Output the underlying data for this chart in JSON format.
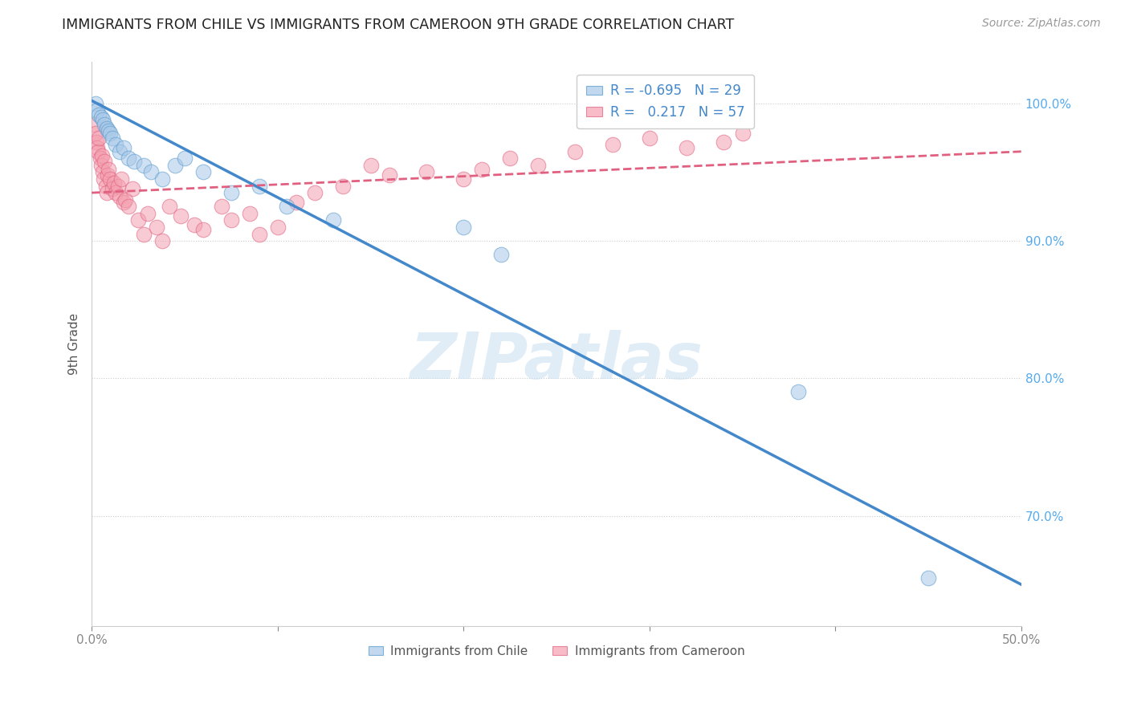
{
  "title": "IMMIGRANTS FROM CHILE VS IMMIGRANTS FROM CAMEROON 9TH GRADE CORRELATION CHART",
  "source": "Source: ZipAtlas.com",
  "ylabel": "9th Grade",
  "xlim": [
    0.0,
    50.0
  ],
  "ylim": [
    62.0,
    103.0
  ],
  "ytick_values": [
    100.0,
    90.0,
    80.0,
    70.0
  ],
  "xtick_values": [
    0.0,
    10.0,
    20.0,
    30.0,
    40.0,
    50.0
  ],
  "xtick_labels": [
    "0.0%",
    "",
    "",
    "",
    "",
    "50.0%"
  ],
  "watermark": "ZIPatlas",
  "chile_color": "#a8c8e8",
  "cameroon_color": "#f4a0b0",
  "chile_edge_color": "#5599cc",
  "cameroon_edge_color": "#e06080",
  "chile_line_color": "#4488cc",
  "cameroon_line_color": "#e06080",
  "right_tick_color": "#55aaee",
  "chile_scatter_x": [
    0.2,
    0.3,
    0.4,
    0.5,
    0.6,
    0.7,
    0.8,
    0.9,
    1.0,
    1.1,
    1.3,
    1.5,
    1.7,
    2.0,
    2.3,
    2.8,
    3.2,
    3.8,
    4.5,
    5.0,
    6.0,
    7.5,
    9.0,
    10.5,
    13.0,
    20.0,
    22.0,
    38.0,
    45.0
  ],
  "chile_scatter_y": [
    100.0,
    99.5,
    99.2,
    99.0,
    98.8,
    98.5,
    98.2,
    98.0,
    97.8,
    97.5,
    97.0,
    96.5,
    96.8,
    96.0,
    95.8,
    95.5,
    95.0,
    94.5,
    95.5,
    96.0,
    95.0,
    93.5,
    94.0,
    92.5,
    91.5,
    91.0,
    89.0,
    79.0,
    65.5
  ],
  "cameroon_scatter_x": [
    0.1,
    0.2,
    0.25,
    0.3,
    0.35,
    0.4,
    0.45,
    0.5,
    0.55,
    0.6,
    0.65,
    0.7,
    0.75,
    0.8,
    0.85,
    0.9,
    1.0,
    1.1,
    1.2,
    1.3,
    1.4,
    1.5,
    1.6,
    1.7,
    1.8,
    2.0,
    2.2,
    2.5,
    2.8,
    3.0,
    3.5,
    3.8,
    4.2,
    4.8,
    5.5,
    6.0,
    7.0,
    7.5,
    8.5,
    9.0,
    10.0,
    11.0,
    12.0,
    13.5,
    15.0,
    16.0,
    18.0,
    20.0,
    21.0,
    22.5,
    24.0,
    26.0,
    28.0,
    30.0,
    32.0,
    34.0,
    35.0
  ],
  "cameroon_scatter_y": [
    98.5,
    97.8,
    97.2,
    96.8,
    96.5,
    97.5,
    96.0,
    95.5,
    96.2,
    95.0,
    94.5,
    95.8,
    94.0,
    93.5,
    94.8,
    95.2,
    94.5,
    93.8,
    94.2,
    93.5,
    94.0,
    93.2,
    94.5,
    92.8,
    93.0,
    92.5,
    93.8,
    91.5,
    90.5,
    92.0,
    91.0,
    90.0,
    92.5,
    91.8,
    91.2,
    90.8,
    92.5,
    91.5,
    92.0,
    90.5,
    91.0,
    92.8,
    93.5,
    94.0,
    95.5,
    94.8,
    95.0,
    94.5,
    95.2,
    96.0,
    95.5,
    96.5,
    97.0,
    97.5,
    96.8,
    97.2,
    97.8
  ],
  "chile_trend_x": [
    0.0,
    50.0
  ],
  "chile_trend_y": [
    100.2,
    65.0
  ],
  "cameroon_trend_x": [
    0.0,
    50.0
  ],
  "cameroon_trend_y": [
    93.5,
    96.5
  ],
  "legend_entries": [
    {
      "label": "R = -0.695   N = 29",
      "color": "#a8c8e8",
      "edge": "#5599cc"
    },
    {
      "label": "R =   0.217   N = 57",
      "color": "#f4a0b0",
      "edge": "#e06080"
    }
  ],
  "bottom_legend": [
    {
      "label": "Immigrants from Chile",
      "color": "#a8c8e8",
      "edge": "#5599cc"
    },
    {
      "label": "Immigrants from Cameroon",
      "color": "#f4a0b0",
      "edge": "#e06080"
    }
  ]
}
